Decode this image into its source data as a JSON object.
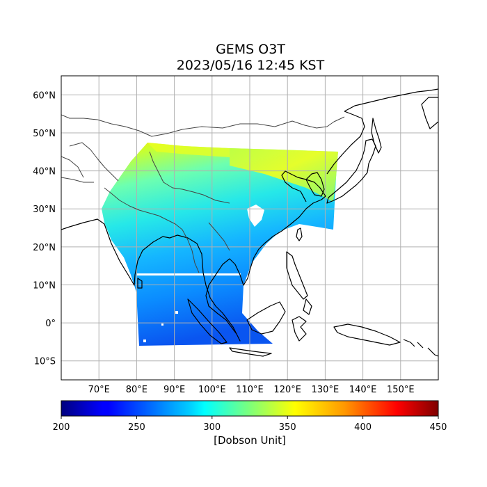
{
  "title": "GEMS O3T",
  "subtitle": "2023/05/16 12:45 KST",
  "map": {
    "lon_range": [
      60,
      160
    ],
    "lat_range": [
      -15,
      65
    ],
    "lon_ticks": [
      70,
      80,
      90,
      100,
      110,
      120,
      130,
      140,
      150
    ],
    "lon_tick_labels": [
      "70°E",
      "80°E",
      "90°E",
      "100°E",
      "110°E",
      "120°E",
      "130°E",
      "140°E",
      "150°E"
    ],
    "lat_ticks": [
      60,
      50,
      40,
      30,
      20,
      10,
      0,
      -10
    ],
    "lat_tick_labels": [
      "60°N",
      "50°N",
      "40°N",
      "30°N",
      "20°N",
      "10°N",
      "0°",
      "10°S"
    ],
    "grid": true,
    "features": [
      "coastlines",
      "country-borders"
    ]
  },
  "colorbar": {
    "colormap": "jet",
    "min": 200,
    "max": 450,
    "ticks": [
      200,
      250,
      300,
      350,
      400,
      450
    ],
    "tick_labels": [
      "200",
      "250",
      "300",
      "350",
      "400",
      "450"
    ],
    "label": "[Dobson Unit]"
  },
  "colors": {
    "low": "#00007f",
    "high": "#7f0000",
    "grid": "#b0b0b0",
    "coast": "#000000",
    "border": "#444444"
  }
}
